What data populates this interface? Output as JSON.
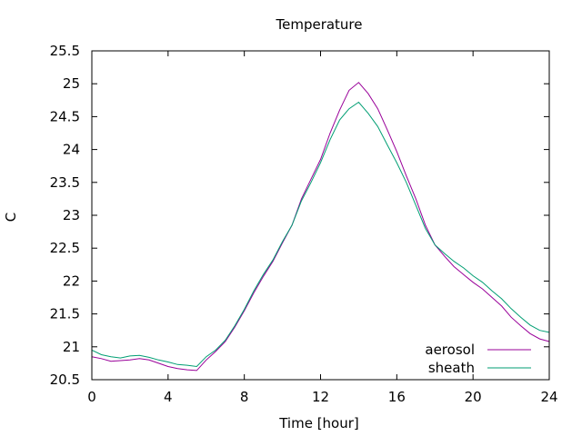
{
  "chart_data": {
    "type": "line",
    "title": "Temperature",
    "xlabel": "Time [hour]",
    "ylabel": "C",
    "xlim": [
      0,
      24
    ],
    "ylim": [
      20.5,
      25.5
    ],
    "xticks": [
      0,
      4,
      8,
      12,
      16,
      20,
      24
    ],
    "xtick_labels": [
      "0",
      "4",
      "8",
      "12",
      "16",
      "20",
      "24"
    ],
    "yticks": [
      20.5,
      21,
      21.5,
      22,
      22.5,
      23,
      23.5,
      24,
      24.5,
      25,
      25.5
    ],
    "ytick_labels": [
      "20.5",
      "21",
      "21.5",
      "22",
      "22.5",
      "23",
      "23.5",
      "24",
      "24.5",
      "25",
      "25.5"
    ],
    "grid": false,
    "legend_position": "bottom-right",
    "x": [
      0,
      0.5,
      1,
      1.5,
      2,
      2.5,
      3,
      3.5,
      4,
      4.5,
      5,
      5.5,
      6,
      6.5,
      7,
      7.5,
      8,
      8.5,
      9,
      9.5,
      10,
      10.5,
      11,
      11.5,
      12,
      12.5,
      13,
      13.5,
      14,
      14.5,
      15,
      15.5,
      16,
      16.5,
      17,
      17.5,
      18,
      18.5,
      19,
      19.5,
      20,
      20.5,
      21,
      21.5,
      22,
      22.5,
      23,
      23.5,
      24
    ],
    "series": [
      {
        "name": "aerosol",
        "color": "#990099",
        "values": [
          20.85,
          20.82,
          20.78,
          20.79,
          20.8,
          20.82,
          20.8,
          20.75,
          20.7,
          20.67,
          20.65,
          20.64,
          20.8,
          20.93,
          21.08,
          21.3,
          21.55,
          21.82,
          22.07,
          22.3,
          22.58,
          22.85,
          23.25,
          23.55,
          23.85,
          24.25,
          24.6,
          24.9,
          25.02,
          24.85,
          24.62,
          24.3,
          23.97,
          23.6,
          23.25,
          22.85,
          22.55,
          22.38,
          22.22,
          22.1,
          21.98,
          21.88,
          21.75,
          21.62,
          21.45,
          21.32,
          21.2,
          21.12,
          21.08
        ]
      },
      {
        "name": "sheath",
        "color": "#009e73",
        "values": [
          20.95,
          20.88,
          20.85,
          20.83,
          20.86,
          20.87,
          20.84,
          20.8,
          20.77,
          20.73,
          20.72,
          20.7,
          20.85,
          20.95,
          21.1,
          21.32,
          21.57,
          21.85,
          22.1,
          22.32,
          22.6,
          22.85,
          23.22,
          23.5,
          23.8,
          24.15,
          24.45,
          24.62,
          24.72,
          24.55,
          24.35,
          24.07,
          23.8,
          23.5,
          23.15,
          22.8,
          22.55,
          22.42,
          22.3,
          22.2,
          22.08,
          21.98,
          21.85,
          21.73,
          21.58,
          21.45,
          21.33,
          21.25,
          21.22
        ]
      }
    ]
  }
}
